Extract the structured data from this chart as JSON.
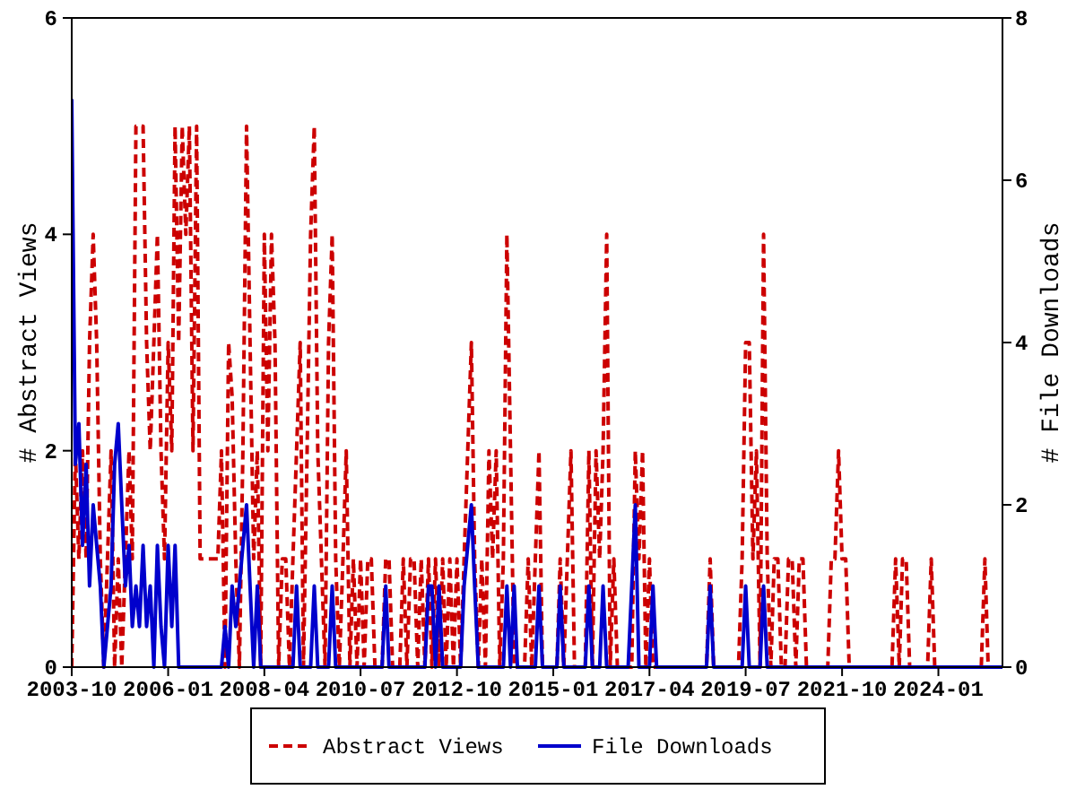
{
  "chart_data": {
    "type": "line",
    "xlabel": null,
    "ylabel": "# Abstract Views",
    "y2label": "# File Downloads",
    "x": [
      "2003-10",
      "2003-11",
      "2003-12",
      "2004-01",
      "2004-02",
      "2004-03",
      "2004-04",
      "2004-05",
      "2004-06",
      "2004-07",
      "2004-08",
      "2004-09",
      "2004-10",
      "2004-11",
      "2004-12",
      "2005-01",
      "2005-02",
      "2005-03",
      "2005-04",
      "2005-05",
      "2005-06",
      "2005-07",
      "2005-08",
      "2005-09",
      "2005-10",
      "2005-11",
      "2005-12",
      "2006-01",
      "2006-02",
      "2006-03",
      "2006-04",
      "2006-05",
      "2006-06",
      "2006-07",
      "2006-08",
      "2006-09",
      "2006-10",
      "2006-11",
      "2006-12",
      "2007-01",
      "2007-02",
      "2007-03",
      "2007-04",
      "2007-05",
      "2007-06",
      "2007-07",
      "2007-08",
      "2007-09",
      "2007-10",
      "2007-11",
      "2007-12",
      "2008-01",
      "2008-02",
      "2008-03",
      "2008-04",
      "2008-05",
      "2008-06",
      "2008-07",
      "2008-08",
      "2008-09",
      "2008-10",
      "2008-11",
      "2008-12",
      "2009-01",
      "2009-02",
      "2009-03",
      "2009-04",
      "2009-05",
      "2009-06",
      "2009-07",
      "2009-08",
      "2009-09",
      "2009-10",
      "2009-11",
      "2009-12",
      "2010-01",
      "2010-02",
      "2010-03",
      "2010-04",
      "2010-05",
      "2010-06",
      "2010-07",
      "2010-08",
      "2010-09",
      "2010-10",
      "2010-11",
      "2010-12",
      "2011-01",
      "2011-02",
      "2011-03",
      "2011-04",
      "2011-05",
      "2011-06",
      "2011-07",
      "2011-08",
      "2011-09",
      "2011-10",
      "2011-11",
      "2011-12",
      "2012-01",
      "2012-02",
      "2012-03",
      "2012-04",
      "2012-05",
      "2012-06",
      "2012-07",
      "2012-08",
      "2012-09",
      "2012-10",
      "2012-11",
      "2012-12",
      "2013-01",
      "2013-02",
      "2013-03",
      "2013-04",
      "2013-05",
      "2013-06",
      "2013-07",
      "2013-08",
      "2013-09",
      "2013-10",
      "2013-11",
      "2013-12",
      "2014-01",
      "2014-02",
      "2014-03",
      "2014-04",
      "2014-05",
      "2014-06",
      "2014-07",
      "2014-08",
      "2014-09",
      "2014-10",
      "2014-11",
      "2014-12",
      "2015-01",
      "2015-02",
      "2015-03",
      "2015-04",
      "2015-05",
      "2015-06",
      "2015-07",
      "2015-08",
      "2015-09",
      "2015-10",
      "2015-11",
      "2015-12",
      "2016-01",
      "2016-02",
      "2016-03",
      "2016-04",
      "2016-05",
      "2016-06",
      "2016-07",
      "2016-08",
      "2016-09",
      "2016-10",
      "2016-11",
      "2016-12",
      "2017-01",
      "2017-02",
      "2017-03",
      "2017-04",
      "2017-05",
      "2017-06",
      "2017-07",
      "2017-08",
      "2017-09",
      "2017-10",
      "2017-11",
      "2017-12",
      "2018-01",
      "2018-02",
      "2018-03",
      "2018-04",
      "2018-05",
      "2018-06",
      "2018-07",
      "2018-08",
      "2018-09",
      "2018-10",
      "2018-11",
      "2018-12",
      "2019-01",
      "2019-02",
      "2019-03",
      "2019-04",
      "2019-05",
      "2019-06",
      "2019-07",
      "2019-08",
      "2019-09",
      "2019-10",
      "2019-11",
      "2019-12",
      "2020-01",
      "2020-02",
      "2020-03",
      "2020-04",
      "2020-05",
      "2020-06",
      "2020-07",
      "2020-08",
      "2020-09",
      "2020-10",
      "2020-11",
      "2020-12",
      "2021-01",
      "2021-02",
      "2021-03",
      "2021-04",
      "2021-05",
      "2021-06",
      "2021-07",
      "2021-08",
      "2021-09",
      "2021-10",
      "2021-11",
      "2021-12",
      "2022-01",
      "2022-02",
      "2022-03",
      "2022-04",
      "2022-05",
      "2022-06",
      "2022-07",
      "2022-08",
      "2022-09",
      "2022-10",
      "2022-11",
      "2022-12",
      "2023-01",
      "2023-02",
      "2023-03",
      "2023-04",
      "2023-05",
      "2023-06",
      "2023-07",
      "2023-08",
      "2023-09",
      "2023-10",
      "2023-11",
      "2023-12",
      "2024-01",
      "2024-02",
      "2024-03",
      "2024-04",
      "2024-05",
      "2024-06",
      "2024-07",
      "2024-08",
      "2024-09",
      "2024-10",
      "2024-11",
      "2024-12",
      "2025-01",
      "2025-02",
      "2025-03",
      "2025-04",
      "2025-05",
      "2025-06",
      "2025-07"
    ],
    "series": [
      {
        "name": "Abstract Views",
        "color": "#cc0000",
        "line_style": "dashed",
        "values": [
          0,
          2,
          1,
          2,
          1,
          3,
          4,
          3,
          1,
          0,
          1,
          2,
          0,
          1,
          0,
          1,
          2,
          1,
          5,
          5,
          5,
          3,
          2,
          3,
          4,
          2,
          1,
          3,
          2,
          5,
          3,
          5,
          4,
          5,
          2,
          5,
          1,
          1,
          1,
          1,
          1,
          1,
          2,
          0,
          3,
          2.5,
          1,
          0,
          2,
          5,
          3,
          1,
          2,
          0,
          4,
          2,
          4,
          3,
          0,
          1,
          1,
          0,
          1,
          2,
          3,
          0,
          2,
          4,
          5,
          2,
          1,
          0,
          3,
          4,
          1,
          0,
          1,
          2,
          0,
          1,
          0,
          1,
          0,
          1,
          1,
          0,
          0,
          0,
          1,
          1,
          0,
          0,
          0,
          1,
          0,
          1,
          1,
          0,
          1,
          0,
          1,
          0,
          1,
          0,
          1,
          0,
          1,
          0,
          1,
          0,
          1,
          2,
          3,
          1,
          0,
          1,
          0,
          2,
          1,
          2,
          0,
          1,
          4,
          2,
          0,
          0,
          0,
          0,
          1,
          0,
          1,
          2,
          0,
          0,
          0,
          0,
          0,
          1,
          0,
          1,
          2,
          0,
          0,
          0,
          0,
          2,
          0,
          2,
          1,
          2,
          4,
          0,
          1,
          0,
          0,
          0,
          0,
          0,
          2,
          1,
          2,
          0,
          1,
          0,
          0,
          0,
          0,
          0,
          0,
          0,
          0,
          0,
          0,
          0,
          0,
          0,
          0,
          0,
          0,
          1,
          0,
          0,
          0,
          0,
          0,
          0,
          0,
          0,
          1,
          3,
          3,
          1,
          2,
          0,
          4,
          1,
          0,
          1,
          1,
          0,
          0,
          1,
          1,
          0,
          1,
          1,
          0,
          0,
          0,
          0,
          0,
          0,
          0,
          1,
          1,
          2,
          1,
          1,
          0,
          0,
          0,
          0,
          0,
          0,
          0,
          0,
          0,
          0,
          0,
          0,
          0,
          1,
          0,
          1,
          1,
          0,
          0,
          0,
          0,
          0,
          0,
          1,
          0,
          0,
          0,
          0,
          0,
          0,
          0,
          0,
          0,
          0,
          0,
          0,
          0,
          0,
          1,
          0,
          0,
          0,
          0,
          0
        ]
      },
      {
        "name": "File Downloads",
        "color": "#0000cc",
        "line_style": "solid",
        "axis": "y2",
        "values": [
          7,
          2.5,
          3,
          1.5,
          2.5,
          1,
          2,
          1.5,
          1,
          0,
          0.5,
          1,
          2.5,
          3,
          2,
          1,
          1.5,
          0.5,
          1,
          0.5,
          1.5,
          0.5,
          1,
          0,
          1.5,
          0.5,
          0,
          1.5,
          0.5,
          1.5,
          0,
          0,
          0,
          0,
          0,
          0,
          0,
          0,
          0,
          0,
          0,
          0,
          0,
          0.5,
          0,
          1,
          0.5,
          1,
          1.5,
          2,
          1,
          0,
          1,
          0,
          0,
          0,
          0,
          0,
          0,
          0,
          0,
          0,
          0,
          1,
          0,
          0,
          0,
          0,
          1,
          0,
          0,
          0,
          0,
          1,
          0,
          0,
          0,
          0,
          0,
          0,
          0,
          0,
          0,
          0,
          0,
          0,
          0,
          0,
          1,
          0,
          0,
          0,
          0,
          0,
          0,
          0,
          0,
          0,
          0,
          0,
          1,
          1,
          0,
          1,
          0,
          0,
          0,
          0,
          0,
          0,
          1,
          1.5,
          2,
          1,
          0,
          0,
          0,
          0,
          0,
          0,
          0,
          0,
          1,
          0,
          1,
          0,
          0,
          0,
          0,
          0,
          0,
          1,
          0,
          0,
          0,
          0,
          0,
          1,
          0,
          0,
          0,
          0,
          0,
          0,
          0,
          1,
          0,
          0,
          0,
          1,
          0,
          0,
          0,
          0,
          0,
          0,
          0,
          1,
          2,
          0,
          0,
          0,
          0,
          1,
          0,
          0,
          0,
          0,
          0,
          0,
          0,
          0,
          0,
          0,
          0,
          0,
          0,
          0,
          0,
          1,
          0,
          0,
          0,
          0,
          0,
          0,
          0,
          0,
          0,
          1,
          0,
          0,
          0,
          0,
          1,
          0,
          0,
          0,
          0,
          0,
          0,
          0,
          0,
          0,
          0,
          0,
          0,
          0,
          0,
          0,
          0,
          0,
          0,
          0,
          0,
          0,
          0,
          0,
          0,
          0,
          0,
          0,
          0,
          0,
          0,
          0,
          0,
          0,
          0,
          0,
          0,
          0,
          0,
          0,
          0,
          0,
          0,
          0,
          0,
          0,
          0,
          0,
          0,
          0,
          0,
          0,
          0,
          0,
          0,
          0,
          0,
          0,
          0,
          0,
          0,
          0,
          0,
          0,
          0,
          0,
          0,
          0
        ]
      }
    ],
    "xlim": [
      "2003-10",
      "2025-07"
    ],
    "xticks": [
      "2003-10",
      "2006-01",
      "2008-04",
      "2010-07",
      "2012-10",
      "2015-01",
      "2017-04",
      "2019-07",
      "2021-10",
      "2024-01"
    ],
    "ylim": [
      0,
      6
    ],
    "yticks": [
      0,
      2,
      4,
      6
    ],
    "y2lim": [
      0,
      8
    ],
    "y2ticks": [
      0,
      2,
      4,
      6,
      8
    ],
    "grid": false,
    "legend": "bottom",
    "marker": "none"
  }
}
